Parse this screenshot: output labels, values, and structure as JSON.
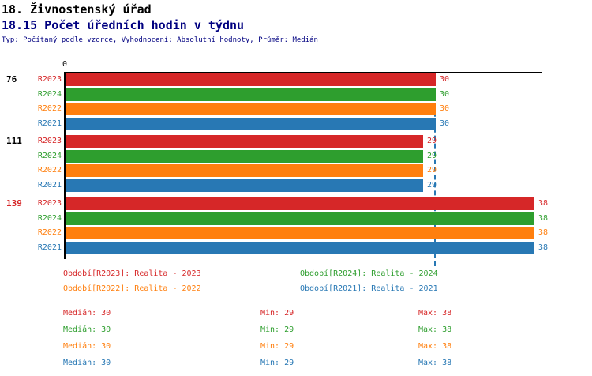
{
  "header": {
    "title": "18. Živnostenský úřad",
    "subtitle": "18.15 Počet úředních hodin v týdnu",
    "meta": "Typ: Počítaný podle vzorce, Vyhodnocení: Absolutní hodnoty, Průměr: Medián"
  },
  "colors": {
    "r2023": "#d62728",
    "r2024": "#2e9e2e",
    "r2022": "#ff7f0e",
    "r2021": "#2878b4",
    "axis": "#000000",
    "median_line": "#2878b4",
    "subtitle_text": "#000080",
    "group_label_highlight": "#d62728",
    "group_label_normal": "#000000"
  },
  "chart_data": {
    "type": "bar",
    "orientation": "horizontal",
    "x_origin_label": "0",
    "xlim": [
      0,
      38.6
    ],
    "grid": false,
    "median_reference_line": 30,
    "series": [
      {
        "name": "R2023",
        "color_key": "r2023",
        "values": [
          30,
          29,
          38
        ]
      },
      {
        "name": "R2024",
        "color_key": "r2024",
        "values": [
          30,
          29,
          38
        ]
      },
      {
        "name": "R2022",
        "color_key": "r2022",
        "values": [
          30,
          29,
          38
        ]
      },
      {
        "name": "R2021",
        "color_key": "r2021",
        "values": [
          30,
          29,
          38
        ]
      }
    ],
    "groups": [
      {
        "label": "76",
        "highlight": false
      },
      {
        "label": "111",
        "highlight": false
      },
      {
        "label": "139",
        "highlight": true
      }
    ]
  },
  "legend": [
    {
      "text": "Období[R2023]: Realita - 2023",
      "color_key": "r2023"
    },
    {
      "text": "Období[R2024]: Realita - 2024",
      "color_key": "r2024"
    },
    {
      "text": "Období[R2022]: Realita - 2022",
      "color_key": "r2022"
    },
    {
      "text": "Období[R2021]: Realita - 2021",
      "color_key": "r2021"
    }
  ],
  "stats_rows": [
    {
      "color_key": "r2023",
      "median": "Medián: 30",
      "min": "Min: 29",
      "max": "Max: 38"
    },
    {
      "color_key": "r2024",
      "median": "Medián: 30",
      "min": "Min: 29",
      "max": "Max: 38"
    },
    {
      "color_key": "r2022",
      "median": "Medián: 30",
      "min": "Min: 29",
      "max": "Max: 38"
    },
    {
      "color_key": "r2021",
      "median": "Medián: 30",
      "min": "Min: 29",
      "max": "Max: 38"
    }
  ]
}
